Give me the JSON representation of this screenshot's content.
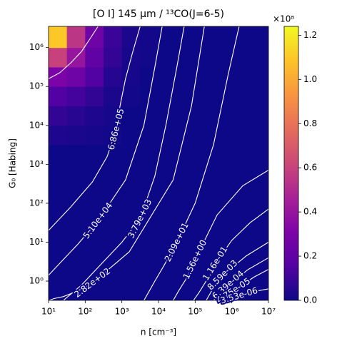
{
  "chart_data": {
    "type": "heatmap",
    "title": "[O I] 145 μm / ¹³CO(J=6-5)",
    "xlabel": "n [cm⁻³]",
    "ylabel": "G₀ [Habing]",
    "xscale": "log",
    "yscale": "log",
    "xlim": [
      10,
      10000000
    ],
    "ylim": [
      0.32,
      3500000
    ],
    "xticks": [
      {
        "value": 10,
        "label": "10¹"
      },
      {
        "value": 100,
        "label": "10²"
      },
      {
        "value": 1000,
        "label": "10³"
      },
      {
        "value": 10000,
        "label": "10⁴"
      },
      {
        "value": 100000,
        "label": "10⁵"
      },
      {
        "value": 1000000,
        "label": "10⁶"
      },
      {
        "value": 10000000,
        "label": "10⁷"
      }
    ],
    "yticks": [
      {
        "value": 1,
        "label": "10⁰"
      },
      {
        "value": 10,
        "label": "10¹"
      },
      {
        "value": 100,
        "label": "10²"
      },
      {
        "value": 1000,
        "label": "10³"
      },
      {
        "value": 10000,
        "label": "10⁴"
      },
      {
        "value": 100000,
        "label": "10⁵"
      },
      {
        "value": 1000000,
        "label": "10⁶"
      }
    ],
    "colormap": "plasma",
    "clim": [
      0,
      1.24
    ],
    "colorbar_multiplier": "×10⁸",
    "cticks": [
      {
        "value": 0,
        "label": "0.0"
      },
      0.2,
      0.4,
      0.6,
      0.8,
      {
        "value": 1,
        "label": "1.0"
      },
      1.2
    ],
    "x_edges": [
      10,
      31.6,
      100,
      316,
      1000,
      3162,
      10000,
      31623,
      100000,
      316228,
      1000000,
      3162278,
      10000000
    ],
    "y_edges": [
      0.32,
      1,
      3.16,
      10,
      31.6,
      100,
      316,
      1000,
      3162,
      10000,
      31623,
      100000,
      316228,
      1000000,
      3500000
    ],
    "z": [
      [
        0,
        0,
        0,
        0,
        0,
        0,
        0,
        0,
        0,
        0,
        0,
        0
      ],
      [
        0,
        0,
        0,
        0,
        0,
        0,
        0,
        0,
        0,
        0,
        0,
        0
      ],
      [
        0,
        0,
        0,
        0,
        0,
        0,
        0,
        0,
        0,
        0,
        0,
        0
      ],
      [
        0,
        0,
        0,
        0,
        0,
        0,
        0,
        0,
        0,
        0,
        0,
        0
      ],
      [
        0,
        0,
        0,
        0,
        0,
        0,
        0,
        0,
        0,
        0,
        0,
        0
      ],
      [
        0,
        0,
        0,
        0,
        0,
        0,
        0,
        0,
        0,
        0,
        0,
        0
      ],
      [
        0,
        0,
        0,
        0,
        0,
        0,
        0,
        0,
        0,
        0,
        0,
        0
      ],
      [
        0,
        0,
        0,
        0,
        0,
        0,
        0,
        0,
        0,
        0,
        0,
        0
      ],
      [
        0.04,
        0.03,
        0.02,
        0.01,
        0,
        0,
        0,
        0,
        0,
        0,
        0,
        0
      ],
      [
        0.08,
        0.06,
        0.04,
        0.02,
        0,
        0,
        0,
        0,
        0,
        0,
        0,
        0
      ],
      [
        0.15,
        0.12,
        0.08,
        0.03,
        0.01,
        0,
        0,
        0,
        0,
        0,
        0,
        0
      ],
      [
        0.3,
        0.25,
        0.15,
        0.05,
        0.02,
        0,
        0,
        0,
        0,
        0,
        0,
        0
      ],
      [
        0.6,
        0.4,
        0.2,
        0.08,
        0.02,
        0.01,
        0,
        0,
        0,
        0,
        0,
        0
      ],
      [
        1.1,
        0.55,
        0.25,
        0.1,
        0.03,
        0.01,
        0,
        0,
        0,
        0,
        0,
        0
      ]
    ],
    "contour_color": "#ffffff",
    "contours": [
      {
        "x": [
          10,
          20,
          39.8,
          79.4,
          141,
          224
        ],
        "y": [
          158000,
          224000,
          398000,
          794000,
          1780000,
          3500000
        ]
      },
      {
        "label": "6.86e+05",
        "x": [
          3162,
          1995,
          1259,
          891,
          708,
          398,
          158,
          39.8,
          10
        ],
        "y": [
          3500000,
          794000,
          158000,
          31600,
          7943,
          1585,
          355,
          79.4,
          20
        ]
      },
      {
        "label": "5.10e+04",
        "x": [
          12589,
          7943,
          3981,
          1259,
          224,
          63.1,
          25.1,
          14.1,
          10
        ],
        "y": [
          3500000,
          316000,
          10000,
          398,
          35.5,
          8.91,
          3.55,
          2.0,
          1.41
        ]
      },
      {
        "label": "3.79e+03",
        "x": [
          50119,
          31623,
          15849,
          7943,
          3162,
          1000,
          251,
          79.4,
          25.1
        ],
        "y": [
          3500000,
          316000,
          10000,
          501,
          39.8,
          10,
          2.51,
          0.794,
          0.316
        ]
      },
      {
        "label": "2.82e+02",
        "x": [
          177828,
          79433,
          25119,
          1585,
          158,
          63.1,
          25.1,
          14.1,
          10
        ],
        "y": [
          3500000,
          31600,
          398,
          5.62,
          0.891,
          0.562,
          0.398,
          0.355,
          0.316
        ]
      },
      {
        "label": "2.09e+01",
        "x": [
          1585000,
          794328,
          316228,
          100000,
          31623,
          14125,
          7943,
          5623,
          3981
        ],
        "y": [
          3500000,
          199500,
          3162,
          100,
          10,
          2.51,
          1,
          0.562,
          0.316
        ]
      },
      {
        "label": "1.56e+00",
        "x": [
          10000000,
          1995000,
          398107,
          100000,
          56234,
          35481,
          25119
        ],
        "y": [
          708,
          282,
          50.1,
          3.55,
          1.12,
          0.562,
          0.316
        ]
      },
      {
        "label": "1.16e-01",
        "x": [
          10000000,
          3160000,
          1000000,
          354813,
          199526,
          125893,
          89125
        ],
        "y": [
          70.8,
          31.6,
          11.2,
          2.82,
          1,
          0.501,
          0.316
        ]
      },
      {
        "label": "8.59e-03",
        "x": [
          10000000,
          2510000,
          562341,
          281838,
          199526
        ],
        "y": [
          10,
          4.47,
          1.41,
          0.562,
          0.316
        ]
      },
      {
        "label": "6.39e-04",
        "x": [
          10000000,
          2820000,
          794328,
          446684,
          316228
        ],
        "y": [
          3.98,
          2.0,
          0.794,
          0.447,
          0.316
        ]
      },
      {
        "label": "4.75e-05",
        "x": [
          10000000,
          3980000,
          1120000,
          630957,
          446684
        ],
        "y": [
          2.0,
          1.26,
          0.562,
          0.398,
          0.316
        ]
      },
      {
        "label": "3.53e-06",
        "x": [
          10000000,
          3980000,
          1585000,
          891251,
          630957
        ],
        "y": [
          0.631,
          0.537,
          0.417,
          0.355,
          0.316
        ]
      }
    ]
  }
}
